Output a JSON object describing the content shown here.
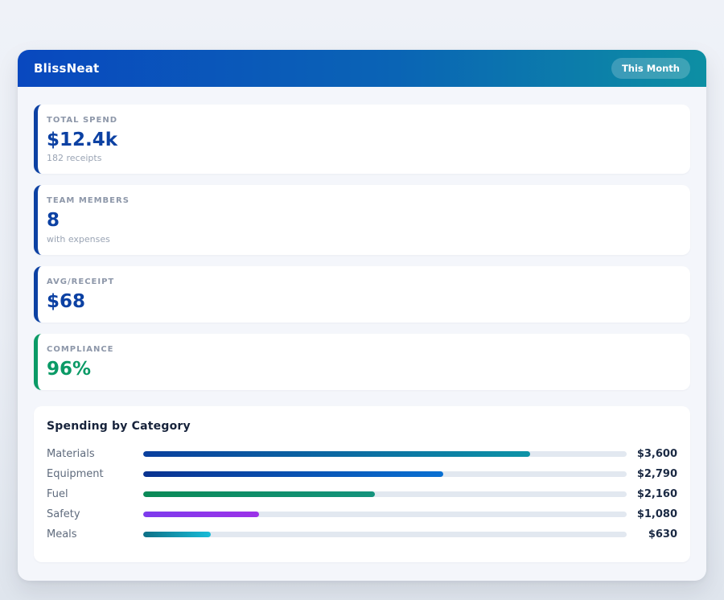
{
  "app": {
    "title": "BlissNeat",
    "period_badge": "This Month",
    "header_gradient": [
      "#0948bf",
      "#0d8fa3"
    ]
  },
  "stats": [
    {
      "label": "TOTAL SPEND",
      "value": "$12.4k",
      "sub": "182 receipts",
      "accent": "#0c41a3"
    },
    {
      "label": "TEAM MEMBERS",
      "value": "8",
      "sub": "with expenses",
      "accent": "#0c41a3"
    },
    {
      "label": "AVG/RECEIPT",
      "value": "$68",
      "sub": "",
      "accent": "#0c41a3"
    },
    {
      "label": "COMPLIANCE",
      "value": "96%",
      "sub": "",
      "accent": "#0a9a66"
    }
  ],
  "spending": {
    "title": "Spending by Category",
    "track_color": "#e2e8f0",
    "rows": [
      {
        "label": "Materials",
        "value_label": "$3,600",
        "value": 3600,
        "width_pct": 80,
        "color_from": "#0a3f9e",
        "color_to": "#0d93a6"
      },
      {
        "label": "Equipment",
        "value_label": "$2,790",
        "value": 2790,
        "width_pct": 62,
        "color_from": "#0a3390",
        "color_to": "#0a70d2"
      },
      {
        "label": "Fuel",
        "value_label": "$2,160",
        "value": 2160,
        "width_pct": 48,
        "color_from": "#0b8a57",
        "color_to": "#14937d"
      },
      {
        "label": "Safety",
        "value_label": "$1,080",
        "value": 1080,
        "width_pct": 24,
        "color_from": "#7d3bed",
        "color_to": "#9c32e8"
      },
      {
        "label": "Meals",
        "value_label": "$630",
        "value": 630,
        "width_pct": 14,
        "color_from": "#0e7086",
        "color_to": "#18bcd8"
      }
    ]
  },
  "chart_data": {
    "type": "bar",
    "orientation": "horizontal",
    "title": "Spending by Category",
    "categories": [
      "Materials",
      "Equipment",
      "Fuel",
      "Safety",
      "Meals"
    ],
    "values": [
      3600,
      2790,
      2160,
      1080,
      630
    ],
    "value_labels": [
      "$3,600",
      "$2,790",
      "$2,160",
      "$1,080",
      "$630"
    ],
    "xlim": [
      0,
      4500
    ],
    "grid": false,
    "legend": false
  }
}
